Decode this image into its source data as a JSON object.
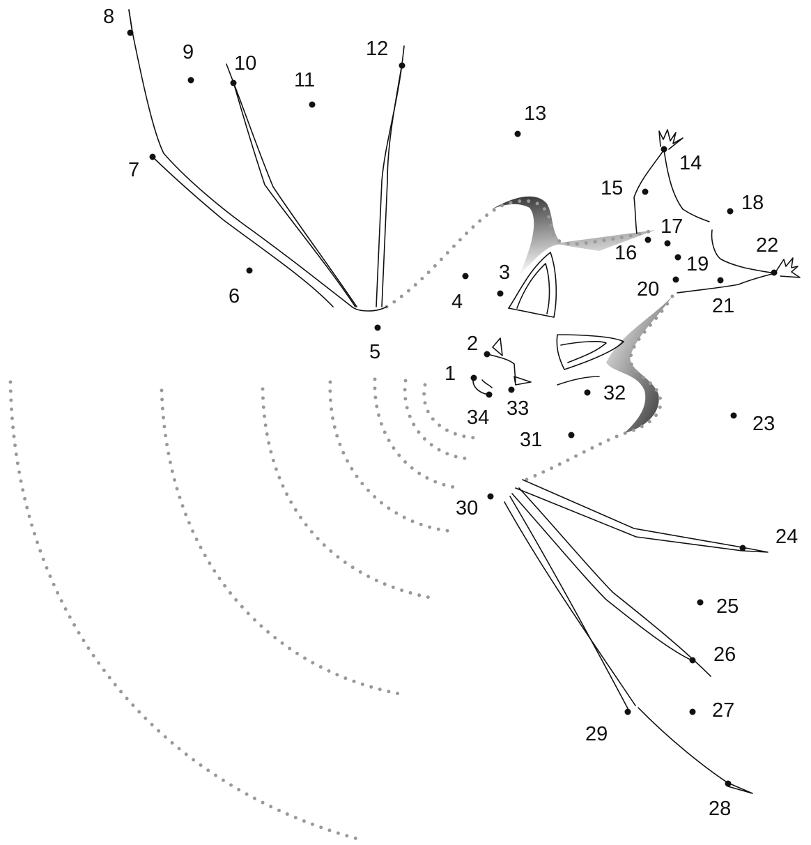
{
  "puzzle": {
    "kind": "connect-the-dots",
    "subject": "bat",
    "dot_color": "#111111",
    "guide_color": "#999999",
    "labels": [
      "1",
      "2",
      "3",
      "4",
      "5",
      "6",
      "7",
      "8",
      "9",
      "10",
      "11",
      "12",
      "13",
      "14",
      "15",
      "16",
      "17",
      "18",
      "19",
      "20",
      "21",
      "22",
      "23",
      "24",
      "25",
      "26",
      "27",
      "28",
      "29",
      "30",
      "31",
      "32",
      "33",
      "34"
    ]
  }
}
